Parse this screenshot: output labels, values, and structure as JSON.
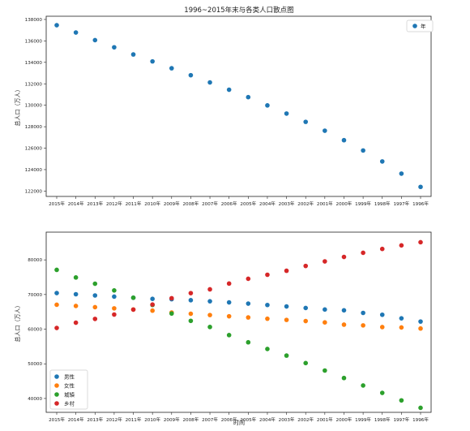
{
  "chart_data": [
    {
      "type": "scatter",
      "title": "1996~2015年末与各类人口散点图",
      "xlabel": "",
      "ylabel": "总人口（万人）",
      "categories": [
        "2015年",
        "2014年",
        "2013年",
        "2012年",
        "2011年",
        "2010年",
        "2009年",
        "2008年",
        "2007年",
        "2006年",
        "2005年",
        "2004年",
        "2003年",
        "2002年",
        "2001年",
        "2000年",
        "1999年",
        "1998年",
        "1997年",
        "1996年"
      ],
      "ylim": [
        121500,
        138300
      ],
      "yticks": [
        "122000",
        "124000",
        "126000",
        "128000",
        "130000",
        "132000",
        "134000",
        "136000",
        "138000"
      ],
      "series": [
        {
          "name": "年",
          "color": "#1f77b4",
          "values": [
            137462,
            136782,
            136072,
            135404,
            134735,
            134091,
            133450,
            132802,
            132129,
            131448,
            130756,
            129988,
            129227,
            128453,
            127627,
            126743,
            125786,
            124761,
            123626,
            122389
          ]
        }
      ],
      "legend_position": "upper right",
      "grid": false
    },
    {
      "type": "scatter",
      "title": "",
      "xlabel": "时间",
      "ylabel": "总人口（万人）",
      "categories": [
        "2015年",
        "2014年",
        "2013年",
        "2012年",
        "2011年",
        "2010年",
        "2009年",
        "2008年",
        "2007年",
        "2006年",
        "2005年",
        "2004年",
        "2003年",
        "2002年",
        "2001年",
        "2000年",
        "1999年",
        "1998年",
        "1997年",
        "1996年"
      ],
      "ylim": [
        36000,
        88000
      ],
      "yticks": [
        "40000",
        "50000",
        "60000",
        "70000",
        "80000"
      ],
      "series": [
        {
          "name": "男性",
          "color": "#1f77b4",
          "values": [
            70414,
            70079,
            69728,
            69395,
            69068,
            68748,
            68647,
            68357,
            68048,
            67728,
            67375,
            66976,
            66556,
            66115,
            65672,
            65437,
            64692,
            64157,
            63131,
            62200
          ]
        },
        {
          "name": "女性",
          "color": "#ff7f0e",
          "values": [
            67048,
            66703,
            66344,
            66009,
            65667,
            65343,
            64803,
            64445,
            64081,
            63720,
            63381,
            63012,
            62671,
            62338,
            61955,
            61306,
            61094,
            60604,
            60495,
            60189
          ]
        },
        {
          "name": "城镇",
          "color": "#2ca02c",
          "values": [
            77116,
            74916,
            73111,
            71182,
            69079,
            66978,
            64512,
            62403,
            60633,
            58288,
            56212,
            54283,
            52376,
            50212,
            48064,
            45906,
            43748,
            41608,
            39449,
            37304
          ]
        },
        {
          "name": "乡村",
          "color": "#d62728",
          "values": [
            60346,
            61866,
            62961,
            64222,
            65656,
            67113,
            68938,
            70399,
            71496,
            73160,
            74544,
            75705,
            76851,
            78241,
            79563,
            80837,
            82038,
            83153,
            84177,
            85085
          ]
        }
      ],
      "legend_position": "lower left",
      "grid": false
    }
  ]
}
